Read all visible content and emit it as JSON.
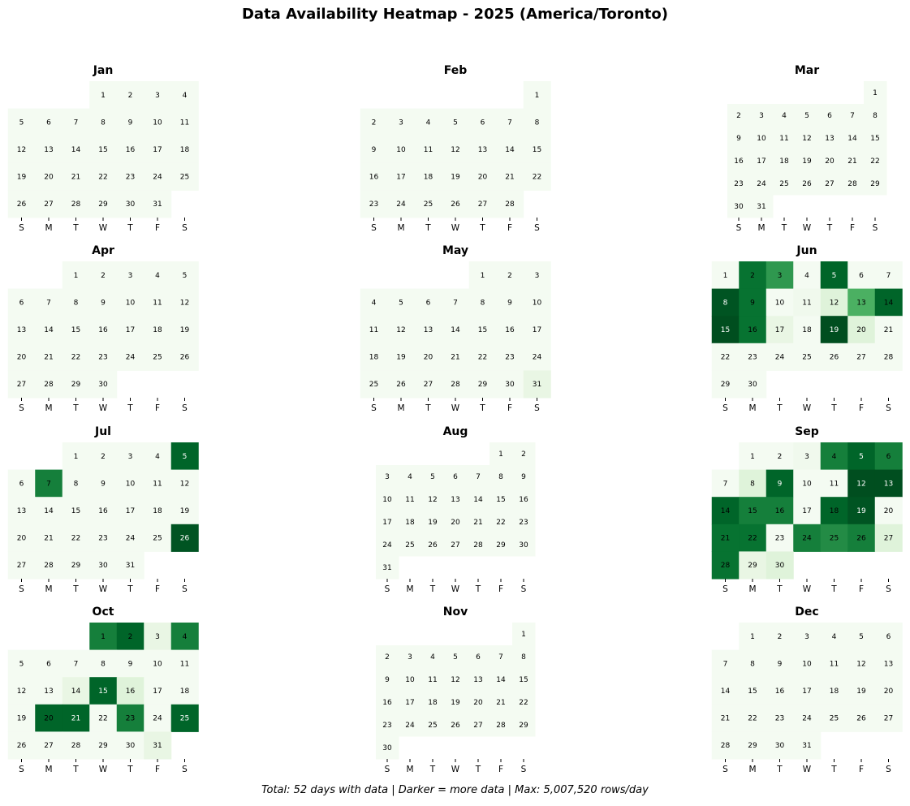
{
  "title": "Data Availability Heatmap - 2025 (America/Toronto)",
  "footer": "Total: 52 days with data | Darker = more data | Max: 5,007,520 rows/day",
  "chart_data": {
    "type": "heatmap",
    "year": 2025,
    "colormap": "Greens",
    "weekday_labels": [
      "S",
      "M",
      "T",
      "W",
      "T",
      "F",
      "S"
    ],
    "months": [
      {
        "name": "Jan",
        "days": 31,
        "start_weekday": 3,
        "values": {}
      },
      {
        "name": "Feb",
        "days": 28,
        "start_weekday": 6,
        "values": {}
      },
      {
        "name": "Mar",
        "days": 31,
        "start_weekday": 6,
        "values": {}
      },
      {
        "name": "Apr",
        "days": 30,
        "start_weekday": 2,
        "values": {}
      },
      {
        "name": "May",
        "days": 31,
        "start_weekday": 4,
        "values": {
          "31": 0.1
        }
      },
      {
        "name": "Jun",
        "days": 30,
        "start_weekday": 0,
        "values": {
          "2": 0.85,
          "3": 0.7,
          "5": 0.9,
          "8": 0.95,
          "9": 0.85,
          "11": 0.05,
          "12": 0.15,
          "13": 0.6,
          "14": 0.9,
          "15": 0.97,
          "16": 0.85,
          "17": 0.1,
          "19": 0.97,
          "20": 0.15
        }
      },
      {
        "name": "Jul",
        "days": 31,
        "start_weekday": 2,
        "values": {
          "5": 0.9,
          "7": 0.8,
          "26": 0.95
        }
      },
      {
        "name": "Aug",
        "days": 31,
        "start_weekday": 5,
        "values": {}
      },
      {
        "name": "Sep",
        "days": 30,
        "start_weekday": 1,
        "values": {
          "3": 0.05,
          "4": 0.8,
          "5": 0.9,
          "6": 0.8,
          "8": 0.15,
          "9": 0.9,
          "12": 0.97,
          "13": 0.97,
          "14": 0.9,
          "15": 0.8,
          "16": 0.8,
          "18": 0.9,
          "19": 0.95,
          "21": 0.85,
          "22": 0.85,
          "24": 0.8,
          "25": 0.75,
          "26": 0.8,
          "27": 0.15,
          "28": 0.85,
          "29": 0.1,
          "30": 0.15
        }
      },
      {
        "name": "Oct",
        "days": 31,
        "start_weekday": 3,
        "values": {
          "1": 0.8,
          "2": 0.9,
          "3": 0.1,
          "4": 0.8,
          "14": 0.1,
          "15": 0.9,
          "16": 0.15,
          "20": 0.9,
          "21": 0.9,
          "23": 0.8,
          "25": 0.9,
          "31": 0.1
        }
      },
      {
        "name": "Nov",
        "days": 30,
        "start_weekday": 6,
        "values": {}
      },
      {
        "name": "Dec",
        "days": 31,
        "start_weekday": 1,
        "values": {}
      }
    ]
  }
}
